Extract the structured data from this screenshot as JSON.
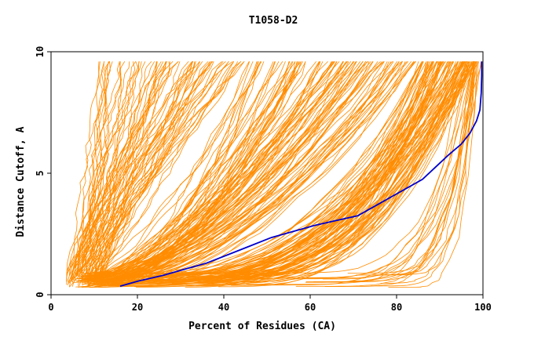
{
  "chart_data": {
    "type": "line",
    "title": "T1058-D2",
    "xlabel": "Percent of Residues (CA)",
    "ylabel": "Distance Cutoff, A",
    "xlim": [
      0,
      100
    ],
    "ylim": [
      0,
      10
    ],
    "x_ticks": [
      "0",
      "20",
      "40",
      "60",
      "80",
      "100"
    ],
    "y_ticks": [
      "0",
      "5",
      "10"
    ],
    "grid": false,
    "legend": "none",
    "colors": {
      "background_series": "#ff8c00",
      "highlight_series": "#0000cd",
      "axis": "#000000"
    },
    "highlight_series": {
      "x": [
        16,
        20,
        26,
        31,
        36,
        41,
        46,
        51,
        56,
        61,
        66,
        71,
        76,
        81,
        86,
        89,
        92,
        95,
        97,
        98.5,
        99.3,
        99.6,
        99.7,
        99.7
      ],
      "y": [
        0.35,
        0.55,
        0.8,
        1.05,
        1.3,
        1.65,
        2.0,
        2.35,
        2.6,
        2.85,
        3.05,
        3.25,
        3.75,
        4.25,
        4.75,
        5.25,
        5.75,
        6.2,
        6.65,
        7.15,
        7.6,
        8.3,
        9.0,
        9.6
      ]
    },
    "background_series_families": [
      {
        "name_hint": "steep",
        "start_x": [
          3.5,
          12
        ],
        "end_x": [
          11,
          45
        ],
        "shape_power": [
          0.7,
          1.3
        ],
        "count": 70
      },
      {
        "name_hint": "middle",
        "start_x": [
          5,
          16
        ],
        "end_x": [
          45,
          85
        ],
        "shape_power": [
          1.3,
          2.2
        ],
        "count": 100
      },
      {
        "name_hint": "shallow",
        "start_x": [
          8,
          45
        ],
        "end_x": [
          85,
          99
        ],
        "shape_power": [
          2.2,
          3.6
        ],
        "count": 90
      },
      {
        "name_hint": "late",
        "start_x": [
          45,
          80
        ],
        "end_x": [
          96,
          100
        ],
        "shape_power": [
          4,
          6.5
        ],
        "count": 20
      }
    ]
  }
}
